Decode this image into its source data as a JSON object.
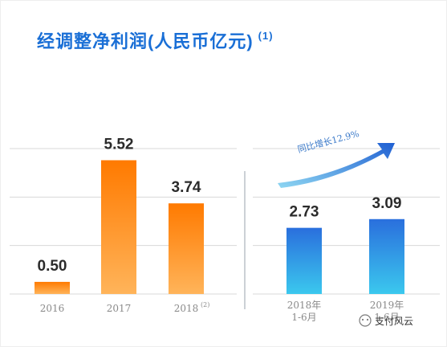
{
  "title": "经调整净利润(人民币亿元)",
  "title_note": "(1)",
  "watermark": "支付风云",
  "colors": {
    "title": "#1a6fd6",
    "orange_top": "#ff7a00",
    "orange_bottom": "#ffb45a",
    "blue_top": "#2a6fdd",
    "blue_bottom": "#3bc8ee",
    "arrow_start": "#8fd7f2",
    "arrow_end": "#1f5fd2",
    "grid": "#d8d8d8"
  },
  "chart_data": [
    {
      "type": "bar",
      "title": "经调整净利润(人民币亿元)",
      "categories": [
        "2016",
        "2017",
        "2018"
      ],
      "category_notes": [
        "",
        "",
        "(2)"
      ],
      "values": [
        0.5,
        5.52,
        3.74
      ],
      "value_labels": [
        "0.50",
        "5.52",
        "3.74"
      ],
      "ylim": [
        0,
        6
      ],
      "grid": true,
      "color_scheme": "orange"
    },
    {
      "type": "bar",
      "categories": [
        "2018年 1-6月",
        "2019年 1-6月"
      ],
      "category_lines": [
        [
          "2018年",
          "1-6月"
        ],
        [
          "2019年",
          "1-6月"
        ]
      ],
      "values": [
        2.73,
        3.09
      ],
      "value_labels": [
        "2.73",
        "3.09"
      ],
      "ylim": [
        0,
        6
      ],
      "grid": true,
      "color_scheme": "blue",
      "annotation": "同比增长12.9%"
    }
  ]
}
